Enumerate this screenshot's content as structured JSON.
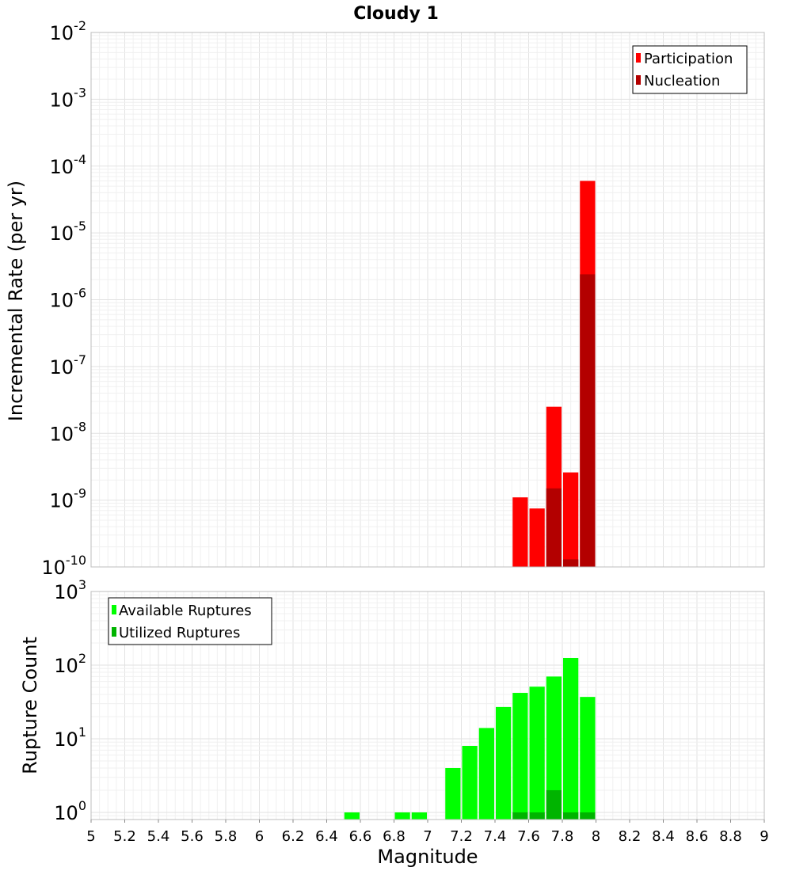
{
  "chart_data": [
    {
      "type": "bar",
      "title": "Cloudy 1",
      "ylabel": "Incremental Rate (per yr)",
      "xlabel": "",
      "y_scale": "log",
      "ylim": [
        1e-10,
        0.01
      ],
      "xlim": [
        5,
        9
      ],
      "x_tick_labels": [
        "5",
        "5.2",
        "5.4",
        "5.6",
        "5.8",
        "6",
        "6.2",
        "6.4",
        "6.6",
        "6.8",
        "7",
        "7.2",
        "7.4",
        "7.6",
        "7.8",
        "8",
        "8.2",
        "8.4",
        "8.6",
        "8.8",
        "9"
      ],
      "bar_width": 0.1,
      "legend": "top-right",
      "grid": true,
      "series": [
        {
          "name": "Participation",
          "color": "#ff0000",
          "x": [
            7.55,
            7.65,
            7.75,
            7.85,
            7.95
          ],
          "values": [
            1.1e-09,
            7.5e-10,
            2.5e-08,
            2.6e-09,
            6e-05
          ]
        },
        {
          "name": "Nucleation",
          "color": "#b30000",
          "x": [
            7.75,
            7.85,
            7.95
          ],
          "values": [
            1.5e-09,
            1.3e-10,
            2.4e-06
          ]
        }
      ]
    },
    {
      "type": "bar",
      "title": "",
      "ylabel": "Rupture Count",
      "xlabel": "Magnitude",
      "y_scale": "log",
      "ylim": [
        0.8,
        1000
      ],
      "xlim": [
        5,
        9
      ],
      "x_tick_labels": [
        "5",
        "5.2",
        "5.4",
        "5.6",
        "5.8",
        "6",
        "6.2",
        "6.4",
        "6.6",
        "6.8",
        "7",
        "7.2",
        "7.4",
        "7.6",
        "7.8",
        "8",
        "8.2",
        "8.4",
        "8.6",
        "8.8",
        "9"
      ],
      "bar_width": 0.1,
      "legend": "top-left",
      "grid": true,
      "series": [
        {
          "name": "Available Ruptures",
          "color": "#00ff00",
          "x": [
            6.55,
            6.85,
            6.95,
            7.15,
            7.25,
            7.35,
            7.45,
            7.55,
            7.65,
            7.75,
            7.85,
            7.95
          ],
          "values": [
            1,
            1,
            1,
            4,
            8,
            14,
            27,
            42,
            51,
            70,
            125,
            37
          ]
        },
        {
          "name": "Utilized Ruptures",
          "color": "#00b400",
          "x": [
            7.55,
            7.65,
            7.75,
            7.85,
            7.95
          ],
          "values": [
            1,
            1,
            2,
            1,
            1
          ]
        }
      ]
    }
  ]
}
